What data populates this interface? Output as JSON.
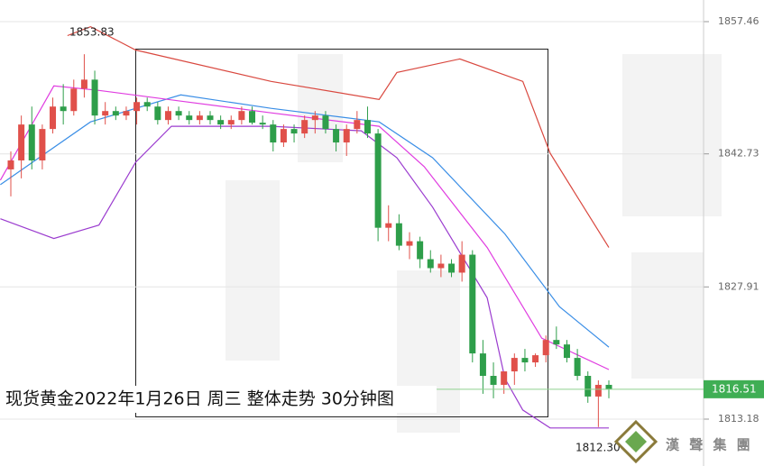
{
  "chart_data": {
    "type": "candlestick",
    "title": "现货黄金2022年1月26日 周三 整体走势  30分钟图",
    "ylim": [
      1807.96,
      1859.87
    ],
    "yticks": [
      1857.46,
      1842.73,
      1827.91,
      1813.18
    ],
    "grid": true,
    "up_color": "#e0504a",
    "down_color": "#2e9e4a",
    "candles": [
      [
        1841,
        1843,
        1838,
        1842
      ],
      [
        1842,
        1847,
        1840,
        1846
      ],
      [
        1846,
        1848,
        1841,
        1842
      ],
      [
        1842,
        1846,
        1841,
        1845.5
      ],
      [
        1845.5,
        1849,
        1845,
        1848
      ],
      [
        1848,
        1850.5,
        1846,
        1847.5
      ],
      [
        1847.5,
        1851,
        1847,
        1850
      ],
      [
        1850,
        1853.83,
        1849,
        1851
      ],
      [
        1851,
        1852,
        1846,
        1847
      ],
      [
        1847,
        1848.5,
        1846,
        1847.5
      ],
      [
        1847.5,
        1848,
        1846.5,
        1847
      ],
      [
        1847,
        1848,
        1846.5,
        1847.5
      ],
      [
        1847.5,
        1849,
        1846,
        1848.5
      ],
      [
        1848.5,
        1849,
        1847.5,
        1848
      ],
      [
        1848,
        1848.5,
        1846,
        1846.5
      ],
      [
        1846.5,
        1848,
        1846,
        1847.5
      ],
      [
        1847.5,
        1848,
        1846.5,
        1847
      ],
      [
        1847,
        1847.5,
        1846,
        1846.5
      ],
      [
        1846.5,
        1847.5,
        1846,
        1847
      ],
      [
        1847,
        1847.5,
        1846,
        1846.5
      ],
      [
        1846.5,
        1847,
        1845.5,
        1846
      ],
      [
        1846,
        1847,
        1845.5,
        1846.5
      ],
      [
        1846.5,
        1848,
        1846,
        1847.5
      ],
      [
        1847.5,
        1848,
        1846,
        1846.2
      ],
      [
        1846.2,
        1847,
        1845.5,
        1846
      ],
      [
        1846,
        1846.5,
        1843,
        1844
      ],
      [
        1844,
        1846,
        1843.5,
        1845.5
      ],
      [
        1845.5,
        1846,
        1844,
        1845
      ],
      [
        1845,
        1847,
        1844.5,
        1846.5
      ],
      [
        1846.5,
        1847.5,
        1845,
        1847
      ],
      [
        1847,
        1847.5,
        1845,
        1845.5
      ],
      [
        1845.5,
        1846,
        1843,
        1844
      ],
      [
        1844,
        1846,
        1842.5,
        1845.5
      ],
      [
        1845.5,
        1847.5,
        1845,
        1846.5
      ],
      [
        1846.5,
        1848,
        1844.5,
        1845
      ],
      [
        1845,
        1845.5,
        1833,
        1834.5
      ],
      [
        1834.5,
        1837,
        1833,
        1835
      ],
      [
        1835,
        1836,
        1832,
        1832.5
      ],
      [
        1832.5,
        1834,
        1831,
        1833
      ],
      [
        1833,
        1833.5,
        1830,
        1831
      ],
      [
        1831,
        1832,
        1829.5,
        1830
      ],
      [
        1830,
        1831.5,
        1829,
        1830.5
      ],
      [
        1830.5,
        1831,
        1829,
        1829.5
      ],
      [
        1829.5,
        1833,
        1828.5,
        1831.5
      ],
      [
        1831.5,
        1832,
        1819.5,
        1820.5
      ],
      [
        1820.5,
        1822,
        1816,
        1818
      ],
      [
        1818,
        1819.5,
        1815.5,
        1817
      ],
      [
        1817,
        1818.5,
        1816,
        1818.5
      ],
      [
        1818.5,
        1820.5,
        1817,
        1820
      ],
      [
        1820,
        1821,
        1818.5,
        1819.5
      ],
      [
        1819.5,
        1820.5,
        1819,
        1820.3
      ],
      [
        1820.3,
        1822.5,
        1819.5,
        1822
      ],
      [
        1822,
        1823.5,
        1821,
        1821.5
      ],
      [
        1821.5,
        1822,
        1819.5,
        1820
      ],
      [
        1820,
        1821,
        1817.5,
        1818
      ],
      [
        1818,
        1818.5,
        1815,
        1815.7
      ],
      [
        1815.7,
        1817.5,
        1812.3,
        1817
      ],
      [
        1817,
        1817.5,
        1815.5,
        1816.51
      ]
    ],
    "lines": [
      {
        "color": "#d9483f",
        "x": [
          5.4,
          7.6,
          11.9,
          24.8,
          35.1,
          36.8,
          42.8,
          48.8,
          51.4,
          57
        ],
        "values": [
          1855.9,
          1856.9,
          1854.3,
          1850.8,
          1848.8,
          1851.8,
          1853.3,
          1850.8,
          1842.8,
          1832.3
        ]
      },
      {
        "color": "#3a8ee6",
        "x": [
          -1,
          7.6,
          16.2,
          24.8,
          35.1,
          40.2,
          47.1,
          52.3,
          57
        ],
        "values": [
          1839.3,
          1846.3,
          1849.3,
          1847.8,
          1846.3,
          1842.3,
          1833.8,
          1825.7,
          1821.2
        ]
      },
      {
        "color": "#e03ce0",
        "x": [
          -1,
          4.1,
          8.4,
          16.2,
          24.8,
          35.1,
          39.4,
          45.4,
          50.6,
          57
        ],
        "values": [
          1839.8,
          1850.3,
          1849.8,
          1848.6,
          1847.3,
          1845.8,
          1841.3,
          1832.3,
          1822.2,
          1818.7
        ]
      },
      {
        "color": "#9b3ccf",
        "x": [
          -1,
          4.1,
          8.4,
          11.9,
          15.3,
          24.8,
          33.4,
          36.8,
          40.2,
          45.4,
          47.1,
          48.8,
          51.4,
          57
        ],
        "values": [
          1835.5,
          1833.3,
          1834.8,
          1841.8,
          1845.8,
          1845.8,
          1845.3,
          1842.3,
          1836.8,
          1826.7,
          1817.7,
          1814.2,
          1812.2,
          1812.2
        ]
      }
    ],
    "high_label": {
      "value": 1853.83,
      "label": "1853.83"
    },
    "low_label": {
      "value": 1812.3,
      "label": "1812.30"
    },
    "last_label": {
      "value": 1816.51,
      "label": "1816.51"
    },
    "logo": "漢 聲 集 團"
  }
}
